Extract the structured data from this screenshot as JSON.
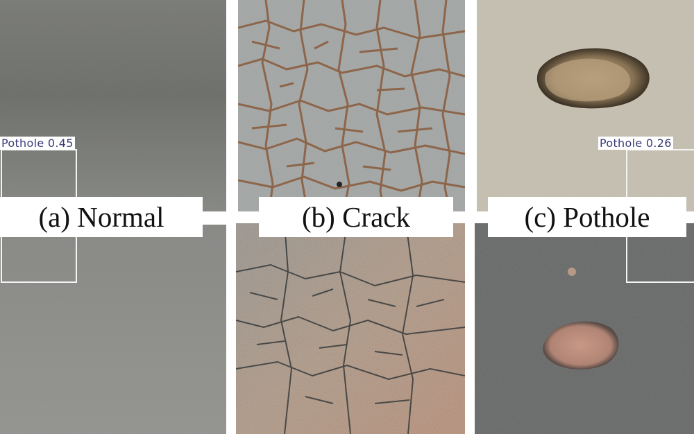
{
  "panels": {
    "normal": {
      "caption": "(a) Normal"
    },
    "crack": {
      "caption": "(b) Crack"
    },
    "pothole": {
      "caption": "(c) Pothole"
    }
  },
  "detections": [
    {
      "label": "Pothole 0.45",
      "panel": "normal",
      "color": "#3a3a78"
    },
    {
      "label": "Pothole 0.26",
      "panel": "pothole",
      "color": "#3a3a78"
    }
  ],
  "colors": {
    "background": "#ffffff",
    "caption_text": "#111111",
    "detection_box": "#f4f4f4",
    "detection_label_text": "#3a3a78"
  }
}
